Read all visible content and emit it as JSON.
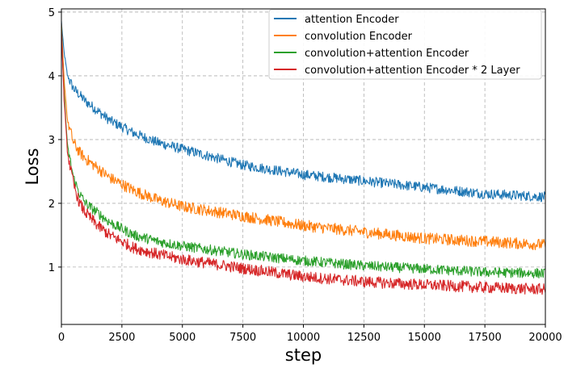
{
  "chart_data": {
    "type": "line",
    "title": "",
    "xlabel": "step",
    "ylabel": "Loss",
    "xlim": [
      0,
      20000
    ],
    "ylim": [
      0.1,
      5.05
    ],
    "x_ticks": [
      0,
      2500,
      5000,
      7500,
      10000,
      12500,
      15000,
      17500,
      20000
    ],
    "y_ticks": [
      1,
      2,
      3,
      4,
      5
    ],
    "grid": true,
    "grid_style": "dashed",
    "legend_position": "top-right",
    "series": [
      {
        "name": "attention Encoder",
        "color": "#1f77b4",
        "noise_amplitude": 0.08,
        "x": [
          0,
          100,
          250,
          500,
          1000,
          1500,
          2000,
          2500,
          3000,
          4000,
          5000,
          6000,
          7500,
          10000,
          12500,
          15000,
          17500,
          20000
        ],
        "values": [
          4.85,
          4.4,
          4.0,
          3.8,
          3.6,
          3.45,
          3.3,
          3.2,
          3.1,
          2.95,
          2.85,
          2.75,
          2.6,
          2.45,
          2.35,
          2.25,
          2.15,
          2.1
        ]
      },
      {
        "name": "convolution Encoder",
        "color": "#ff7f0e",
        "noise_amplitude": 0.09,
        "x": [
          0,
          100,
          250,
          500,
          750,
          1000,
          1500,
          2000,
          2500,
          3000,
          4000,
          5000,
          7500,
          10000,
          12500,
          15000,
          17500,
          20000
        ],
        "values": [
          4.8,
          4.0,
          3.3,
          2.95,
          2.8,
          2.7,
          2.55,
          2.4,
          2.3,
          2.2,
          2.05,
          1.95,
          1.8,
          1.65,
          1.55,
          1.45,
          1.4,
          1.35
        ]
      },
      {
        "name": "convolution+attention Encoder",
        "color": "#2ca02c",
        "noise_amplitude": 0.08,
        "x": [
          0,
          100,
          250,
          500,
          750,
          1000,
          1500,
          2000,
          2500,
          3000,
          4000,
          5000,
          7500,
          10000,
          12500,
          15000,
          17500,
          20000
        ],
        "values": [
          4.75,
          3.8,
          2.9,
          2.4,
          2.15,
          2.0,
          1.85,
          1.7,
          1.6,
          1.5,
          1.4,
          1.33,
          1.2,
          1.1,
          1.02,
          0.97,
          0.92,
          0.9
        ]
      },
      {
        "name": "convolution+attention Encoder * 2 Layer",
        "color": "#d62728",
        "noise_amplitude": 0.09,
        "x": [
          0,
          100,
          250,
          500,
          750,
          1000,
          1500,
          2000,
          2500,
          3000,
          4000,
          5000,
          7500,
          10000,
          12500,
          15000,
          17500,
          20000
        ],
        "values": [
          4.75,
          3.7,
          2.8,
          2.3,
          2.0,
          1.85,
          1.65,
          1.5,
          1.4,
          1.3,
          1.2,
          1.12,
          0.98,
          0.85,
          0.77,
          0.72,
          0.68,
          0.65
        ]
      }
    ]
  }
}
